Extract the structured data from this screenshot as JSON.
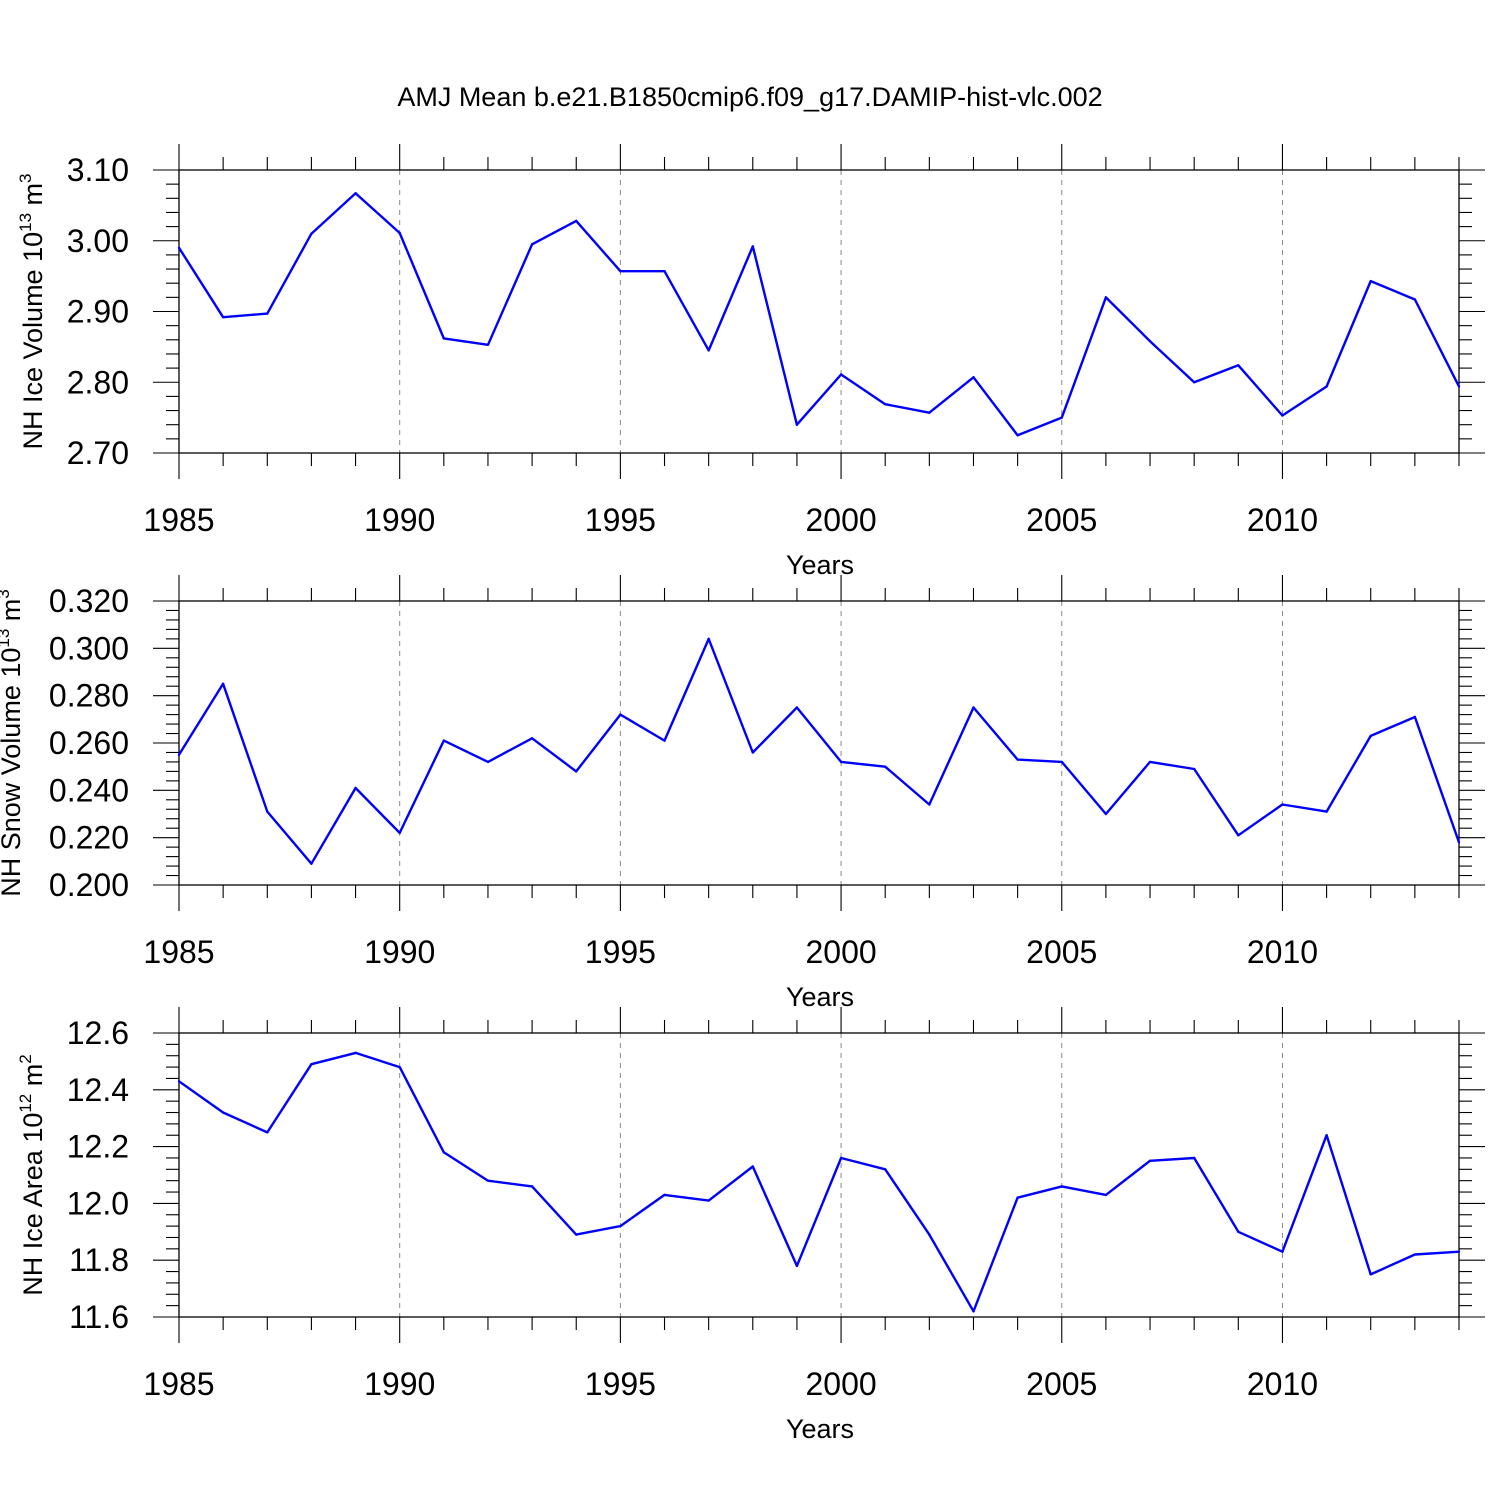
{
  "title": "AMJ Mean b.e21.B1850cmip6.f09_g17.DAMIP-hist-vlc.002",
  "chart_data": [
    {
      "type": "line",
      "ylabel": {
        "base": "NH Ice Volume 10",
        "sup1": "13",
        "mid": " m",
        "sup2": "3"
      },
      "xlabel": "Years",
      "xlim": [
        1985,
        2014
      ],
      "ylim": [
        2.7,
        3.1
      ],
      "xticks": [
        1985,
        1990,
        1995,
        2000,
        2005,
        2010
      ],
      "xtick_labels": [
        "1985",
        "1990",
        "1995",
        "2000",
        "2005",
        "2010"
      ],
      "yticks": [
        2.7,
        2.8,
        2.9,
        3.0,
        3.1
      ],
      "ytick_labels": [
        "2.70",
        "2.80",
        "2.90",
        "3.00",
        "3.10"
      ],
      "grid": "dashed vertical at major x ticks",
      "series": [
        {
          "color": "#0000ff",
          "x": [
            1985,
            1986,
            1987,
            1988,
            1989,
            1990,
            1991,
            1992,
            1993,
            1994,
            1995,
            1996,
            1997,
            1998,
            1999,
            2000,
            2001,
            2002,
            2003,
            2004,
            2005,
            2006,
            2007,
            2008,
            2009,
            2010,
            2011,
            2012,
            2013,
            2014
          ],
          "values": [
            2.99,
            2.892,
            2.897,
            3.01,
            3.067,
            3.011,
            2.862,
            2.853,
            2.995,
            3.028,
            2.957,
            2.957,
            2.845,
            2.992,
            2.74,
            2.811,
            2.769,
            2.757,
            2.807,
            2.725,
            2.75,
            2.92,
            2.858,
            2.8,
            2.824,
            2.753,
            2.794,
            2.943,
            2.917,
            2.794
          ]
        }
      ]
    },
    {
      "type": "line",
      "ylabel": {
        "base": "NH Snow Volume 10",
        "sup1": "13",
        "mid": " m",
        "sup2": "3"
      },
      "xlabel": "Years",
      "xlim": [
        1985,
        2014
      ],
      "ylim": [
        0.2,
        0.32
      ],
      "xticks": [
        1985,
        1990,
        1995,
        2000,
        2005,
        2010
      ],
      "xtick_labels": [
        "1985",
        "1990",
        "1995",
        "2000",
        "2005",
        "2010"
      ],
      "yticks": [
        0.2,
        0.22,
        0.24,
        0.26,
        0.28,
        0.3,
        0.32
      ],
      "ytick_labels": [
        "0.200",
        "0.220",
        "0.240",
        "0.260",
        "0.280",
        "0.300",
        "0.320"
      ],
      "grid": "dashed vertical at major x ticks",
      "series": [
        {
          "color": "#0000ff",
          "x": [
            1985,
            1986,
            1987,
            1988,
            1989,
            1990,
            1991,
            1992,
            1993,
            1994,
            1995,
            1996,
            1997,
            1998,
            1999,
            2000,
            2001,
            2002,
            2003,
            2004,
            2005,
            2006,
            2007,
            2008,
            2009,
            2010,
            2011,
            2012,
            2013,
            2014
          ],
          "values": [
            0.255,
            0.285,
            0.231,
            0.209,
            0.241,
            0.222,
            0.261,
            0.252,
            0.262,
            0.248,
            0.272,
            0.261,
            0.304,
            0.256,
            0.275,
            0.252,
            0.25,
            0.234,
            0.275,
            0.253,
            0.252,
            0.23,
            0.252,
            0.249,
            0.221,
            0.234,
            0.231,
            0.263,
            0.271,
            0.218
          ]
        }
      ]
    },
    {
      "type": "line",
      "ylabel": {
        "base": "NH Ice Area 10",
        "sup1": "12",
        "mid": " m",
        "sup2": "2"
      },
      "xlabel": "Years",
      "xlim": [
        1985,
        2014
      ],
      "ylim": [
        11.6,
        12.6
      ],
      "xticks": [
        1985,
        1990,
        1995,
        2000,
        2005,
        2010
      ],
      "xtick_labels": [
        "1985",
        "1990",
        "1995",
        "2000",
        "2005",
        "2010"
      ],
      "yticks": [
        11.6,
        11.8,
        12.0,
        12.2,
        12.4,
        12.6
      ],
      "ytick_labels": [
        "11.6",
        "11.8",
        "12.0",
        "12.2",
        "12.4",
        "12.6"
      ],
      "grid": "dashed vertical at major x ticks",
      "series": [
        {
          "color": "#0000ff",
          "x": [
            1985,
            1986,
            1987,
            1988,
            1989,
            1990,
            1991,
            1992,
            1993,
            1994,
            1995,
            1996,
            1997,
            1998,
            1999,
            2000,
            2001,
            2002,
            2003,
            2004,
            2005,
            2006,
            2007,
            2008,
            2009,
            2010,
            2011,
            2012,
            2013,
            2014
          ],
          "values": [
            12.43,
            12.32,
            12.25,
            12.49,
            12.53,
            12.48,
            12.18,
            12.08,
            12.06,
            11.89,
            11.92,
            12.03,
            12.01,
            12.13,
            11.78,
            12.16,
            12.12,
            11.89,
            11.62,
            12.02,
            12.06,
            12.03,
            12.15,
            12.16,
            11.9,
            11.83,
            12.24,
            11.75,
            11.82,
            11.83
          ]
        }
      ]
    }
  ]
}
